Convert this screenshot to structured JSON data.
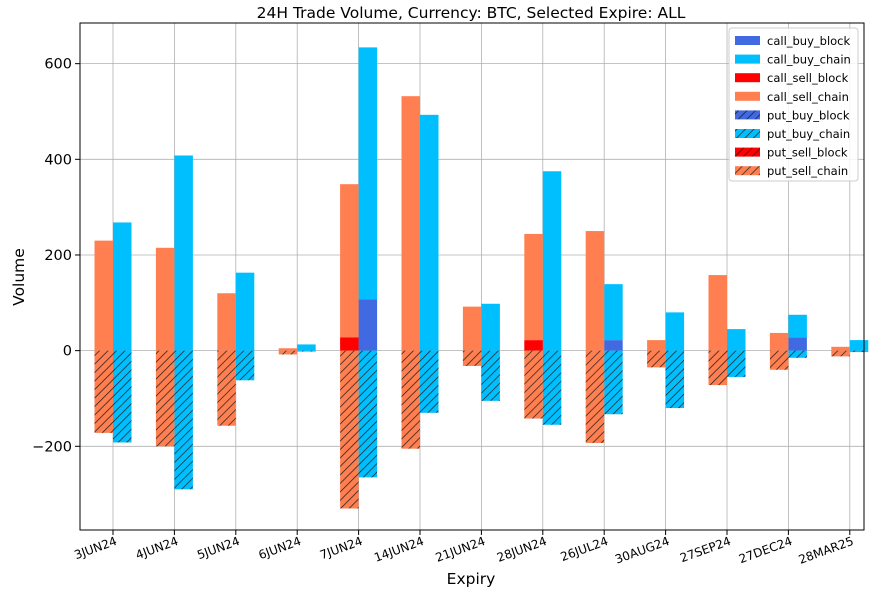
{
  "chart_data": {
    "type": "bar",
    "title": "24H Trade Volume, Currency: BTC, Selected Expire: ALL",
    "xlabel": "Expiry",
    "ylabel": "Volume",
    "ylim": [
      -375,
      685
    ],
    "yticks": [
      -200,
      0,
      200,
      400,
      600
    ],
    "ytick_labels": [
      "−200",
      "0",
      "200",
      "400",
      "600"
    ],
    "grid": true,
    "legend_position": "top-right",
    "categories": [
      "3JUN24",
      "4JUN24",
      "5JUN24",
      "6JUN24",
      "7JUN24",
      "14JUN24",
      "21JUN24",
      "28JUN24",
      "26JUL24",
      "30AUG24",
      "27SEP24",
      "27DEC24",
      "28MAR25"
    ],
    "series": [
      {
        "name": "call_buy_block",
        "color": "#4169e1",
        "hatch": false,
        "side": "right",
        "sign": 1,
        "values": [
          0,
          0,
          0,
          0,
          107,
          0,
          0,
          0,
          22,
          0,
          0,
          28,
          0
        ]
      },
      {
        "name": "call_buy_chain",
        "color": "#00bfff",
        "hatch": false,
        "side": "right",
        "sign": 1,
        "values": [
          268,
          408,
          163,
          13,
          527,
          493,
          98,
          375,
          117,
          80,
          45,
          47,
          22
        ]
      },
      {
        "name": "call_sell_block",
        "color": "#ff0000",
        "hatch": false,
        "side": "left",
        "sign": 1,
        "values": [
          0,
          0,
          0,
          0,
          28,
          0,
          0,
          22,
          0,
          0,
          0,
          0,
          0
        ]
      },
      {
        "name": "call_sell_chain",
        "color": "#ff7f50",
        "hatch": false,
        "side": "left",
        "sign": 1,
        "values": [
          230,
          215,
          120,
          5,
          320,
          532,
          92,
          222,
          250,
          22,
          158,
          37,
          8
        ]
      },
      {
        "name": "put_buy_block",
        "color": "#4169e1",
        "hatch": true,
        "side": "right",
        "sign": -1,
        "values": [
          0,
          0,
          0,
          0,
          0,
          0,
          0,
          0,
          0,
          0,
          0,
          0,
          0
        ]
      },
      {
        "name": "put_buy_chain",
        "color": "#00bfff",
        "hatch": true,
        "side": "right",
        "sign": -1,
        "values": [
          192,
          290,
          62,
          2,
          265,
          130,
          105,
          155,
          133,
          120,
          55,
          15,
          3
        ]
      },
      {
        "name": "put_sell_block",
        "color": "#ff0000",
        "hatch": true,
        "side": "left",
        "sign": -1,
        "values": [
          0,
          0,
          0,
          0,
          0,
          0,
          0,
          0,
          0,
          0,
          0,
          0,
          0
        ]
      },
      {
        "name": "put_sell_chain",
        "color": "#ff7f50",
        "hatch": true,
        "side": "left",
        "sign": -1,
        "values": [
          172,
          200,
          157,
          8,
          330,
          205,
          32,
          142,
          193,
          35,
          72,
          40,
          12
        ]
      }
    ],
    "stack_order": [
      "call_buy_block",
      "call_buy_chain",
      "call_sell_block",
      "call_sell_chain",
      "put_buy_block",
      "put_buy_chain",
      "put_sell_block",
      "put_sell_chain"
    ]
  }
}
